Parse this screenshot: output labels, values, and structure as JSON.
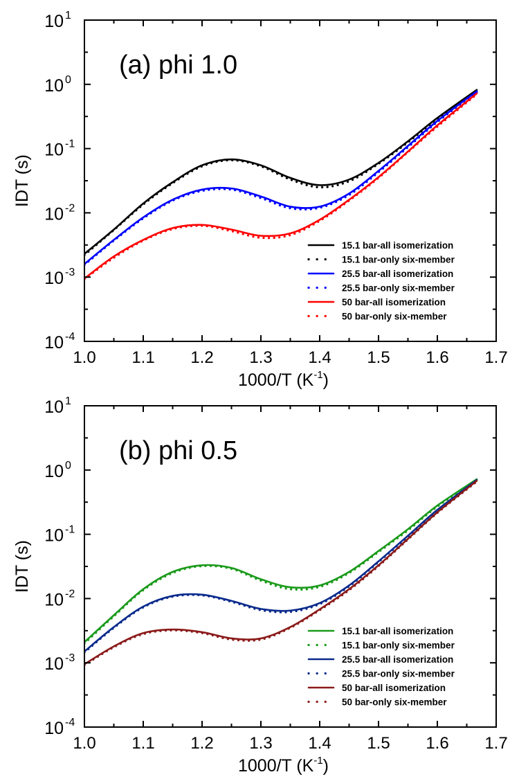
{
  "chart_data": [
    {
      "type": "line",
      "panel_label": "(a) phi 1.0",
      "xlabel": "1000/T (K",
      "xlabel_sup": "-1",
      "xlabel_tail": ")",
      "ylabel": "IDT (s)",
      "xlim": [
        1.0,
        1.7
      ],
      "ylim": [
        0.0001,
        10
      ],
      "yscale": "log",
      "x_ticks": [
        "1.0",
        "1.1",
        "1.2",
        "1.3",
        "1.4",
        "1.5",
        "1.6",
        "1.7"
      ],
      "y_ticks": [
        {
          "base": "10",
          "exp": "-4",
          "value": 0.0001
        },
        {
          "base": "10",
          "exp": "-3",
          "value": 0.001
        },
        {
          "base": "10",
          "exp": "-2",
          "value": 0.01
        },
        {
          "base": "10",
          "exp": "-1",
          "value": 0.1
        },
        {
          "base": "10",
          "exp": "0",
          "value": 1
        },
        {
          "base": "10",
          "exp": "1",
          "value": 10
        }
      ],
      "legend_position": "bottom-right",
      "series": [
        {
          "name": "15.1 bar-all isomerization",
          "color": "#000000",
          "style": "solid",
          "x": [
            1.0,
            1.05,
            1.1,
            1.15,
            1.2,
            1.25,
            1.3,
            1.35,
            1.4,
            1.45,
            1.5,
            1.55,
            1.6,
            1.667
          ],
          "y": [
            0.0023,
            0.0055,
            0.014,
            0.03,
            0.055,
            0.068,
            0.055,
            0.035,
            0.027,
            0.033,
            0.06,
            0.13,
            0.3,
            0.82
          ]
        },
        {
          "name": "15.1 bar-only six-member",
          "color": "#000000",
          "style": "dotted",
          "x": [
            1.0,
            1.05,
            1.1,
            1.15,
            1.2,
            1.25,
            1.3,
            1.35,
            1.4,
            1.45,
            1.5,
            1.55,
            1.6,
            1.667
          ],
          "y": [
            0.0022,
            0.0054,
            0.0135,
            0.029,
            0.053,
            0.066,
            0.053,
            0.033,
            0.025,
            0.031,
            0.058,
            0.125,
            0.29,
            0.8
          ]
        },
        {
          "name": "25.5 bar-all isomerization",
          "color": "#0000ff",
          "style": "solid",
          "x": [
            1.0,
            1.05,
            1.1,
            1.15,
            1.2,
            1.25,
            1.3,
            1.35,
            1.4,
            1.45,
            1.5,
            1.55,
            1.6,
            1.667
          ],
          "y": [
            0.0016,
            0.0038,
            0.0085,
            0.016,
            0.023,
            0.024,
            0.018,
            0.0125,
            0.0125,
            0.02,
            0.045,
            0.11,
            0.27,
            0.78
          ]
        },
        {
          "name": "25.5 bar-only six-member",
          "color": "#0000ff",
          "style": "dotted",
          "x": [
            1.0,
            1.05,
            1.1,
            1.15,
            1.2,
            1.25,
            1.3,
            1.35,
            1.4,
            1.45,
            1.5,
            1.55,
            1.6,
            1.667
          ],
          "y": [
            0.00155,
            0.0037,
            0.0082,
            0.0155,
            0.022,
            0.023,
            0.017,
            0.0118,
            0.012,
            0.019,
            0.043,
            0.105,
            0.26,
            0.76
          ]
        },
        {
          "name": "50 bar-all isomerization",
          "color": "#ff0000",
          "style": "solid",
          "x": [
            1.0,
            1.05,
            1.1,
            1.15,
            1.2,
            1.25,
            1.3,
            1.35,
            1.4,
            1.45,
            1.5,
            1.55,
            1.6,
            1.667
          ],
          "y": [
            0.00095,
            0.0021,
            0.0038,
            0.0058,
            0.0065,
            0.0055,
            0.0044,
            0.0048,
            0.0078,
            0.016,
            0.036,
            0.09,
            0.23,
            0.72
          ]
        },
        {
          "name": "50 bar-only six-member",
          "color": "#ff0000",
          "style": "dotted",
          "x": [
            1.0,
            1.05,
            1.1,
            1.15,
            1.2,
            1.25,
            1.3,
            1.35,
            1.4,
            1.45,
            1.5,
            1.55,
            1.6,
            1.667
          ],
          "y": [
            0.00093,
            0.002,
            0.0037,
            0.0056,
            0.0063,
            0.0052,
            0.0041,
            0.0045,
            0.0075,
            0.0155,
            0.035,
            0.088,
            0.22,
            0.7
          ]
        }
      ]
    },
    {
      "type": "line",
      "panel_label": "(b) phi 0.5",
      "xlabel": "1000/T (K",
      "xlabel_sup": "-1",
      "xlabel_tail": ")",
      "ylabel": "IDT (s)",
      "xlim": [
        1.0,
        1.7
      ],
      "ylim": [
        0.0001,
        10
      ],
      "yscale": "log",
      "x_ticks": [
        "1.0",
        "1.1",
        "1.2",
        "1.3",
        "1.4",
        "1.5",
        "1.6",
        "1.7"
      ],
      "y_ticks": [
        {
          "base": "10",
          "exp": "-4",
          "value": 0.0001
        },
        {
          "base": "10",
          "exp": "-3",
          "value": 0.001
        },
        {
          "base": "10",
          "exp": "-2",
          "value": 0.01
        },
        {
          "base": "10",
          "exp": "-1",
          "value": 0.1
        },
        {
          "base": "10",
          "exp": "0",
          "value": 1
        },
        {
          "base": "10",
          "exp": "1",
          "value": 10
        }
      ],
      "legend_position": "bottom-right",
      "series": [
        {
          "name": "15.1 bar-all isomerization",
          "color": "#1a9a1a",
          "style": "solid",
          "x": [
            1.0,
            1.05,
            1.1,
            1.15,
            1.2,
            1.25,
            1.3,
            1.35,
            1.4,
            1.45,
            1.5,
            1.55,
            1.6,
            1.667
          ],
          "y": [
            0.0021,
            0.0055,
            0.014,
            0.026,
            0.033,
            0.03,
            0.02,
            0.015,
            0.016,
            0.026,
            0.055,
            0.12,
            0.28,
            0.72
          ]
        },
        {
          "name": "15.1 bar-only six-member",
          "color": "#1a9a1a",
          "style": "dotted",
          "x": [
            1.0,
            1.05,
            1.1,
            1.15,
            1.2,
            1.25,
            1.3,
            1.35,
            1.4,
            1.45,
            1.5,
            1.55,
            1.6,
            1.667
          ],
          "y": [
            0.002,
            0.0053,
            0.0135,
            0.025,
            0.032,
            0.029,
            0.019,
            0.014,
            0.0152,
            0.025,
            0.053,
            0.115,
            0.27,
            0.7
          ]
        },
        {
          "name": "25.5 bar-all isomerization",
          "color": "#0a2a8c",
          "style": "solid",
          "x": [
            1.0,
            1.05,
            1.1,
            1.15,
            1.2,
            1.25,
            1.3,
            1.35,
            1.4,
            1.45,
            1.5,
            1.55,
            1.6,
            1.667
          ],
          "y": [
            0.0015,
            0.0036,
            0.0075,
            0.011,
            0.0115,
            0.0092,
            0.0069,
            0.0065,
            0.0085,
            0.016,
            0.038,
            0.095,
            0.24,
            0.7
          ]
        },
        {
          "name": "25.5 bar-only six-member",
          "color": "#0a2a8c",
          "style": "dotted",
          "x": [
            1.0,
            1.05,
            1.1,
            1.15,
            1.2,
            1.25,
            1.3,
            1.35,
            1.4,
            1.45,
            1.5,
            1.55,
            1.6,
            1.667
          ],
          "y": [
            0.00145,
            0.0035,
            0.0073,
            0.0107,
            0.0112,
            0.0089,
            0.0066,
            0.0062,
            0.0082,
            0.0155,
            0.037,
            0.092,
            0.235,
            0.68
          ]
        },
        {
          "name": "50 bar-all isomerization",
          "color": "#8b1a1a",
          "style": "solid",
          "x": [
            1.0,
            1.05,
            1.1,
            1.15,
            1.2,
            1.25,
            1.3,
            1.35,
            1.4,
            1.45,
            1.5,
            1.55,
            1.6,
            1.667
          ],
          "y": [
            0.00095,
            0.0018,
            0.0029,
            0.0033,
            0.003,
            0.0024,
            0.0024,
            0.0036,
            0.0068,
            0.014,
            0.033,
            0.085,
            0.22,
            0.68
          ]
        },
        {
          "name": "50 bar-only six-member",
          "color": "#8b1a1a",
          "style": "dotted",
          "x": [
            1.0,
            1.05,
            1.1,
            1.15,
            1.2,
            1.25,
            1.3,
            1.35,
            1.4,
            1.45,
            1.5,
            1.55,
            1.6,
            1.667
          ],
          "y": [
            0.00092,
            0.00175,
            0.0028,
            0.0032,
            0.0029,
            0.0023,
            0.0023,
            0.0035,
            0.0066,
            0.0135,
            0.032,
            0.083,
            0.215,
            0.66
          ]
        }
      ]
    }
  ]
}
